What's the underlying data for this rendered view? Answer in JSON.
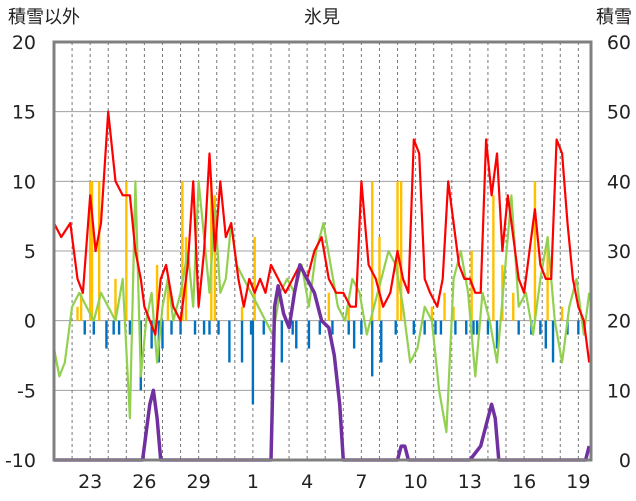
{
  "chart_data": {
    "type": "line",
    "title": "氷見",
    "ylabel_left": "積雪以外",
    "ylabel_right": "積雪",
    "xlabel": "",
    "ylim_left": [
      -10,
      20
    ],
    "ylim_right": [
      0,
      60
    ],
    "yticks_left": [
      "20",
      "15",
      "10",
      "5",
      "0",
      "-5",
      "-10"
    ],
    "yticks_right": [
      "60",
      "50",
      "40",
      "30",
      "20",
      "10",
      "0"
    ],
    "x_ticks": [
      "23",
      "26",
      "29",
      "1",
      "4",
      "7",
      "10",
      "13",
      "16",
      "19"
    ],
    "grid": true,
    "colors": {
      "red_line": "#ff0000",
      "green_line": "#92d050",
      "purple_line": "#7030a0",
      "orange_bars": "#ffc000",
      "blue_bars": "#0070c0",
      "frame": "#808080"
    },
    "series": [
      {
        "color": "red",
        "axis": "left",
        "x": [
          21.0,
          21.4,
          21.9,
          22.3,
          22.6,
          23.0,
          23.3,
          23.6,
          24.0,
          24.4,
          24.8,
          25.2,
          25.5,
          25.8,
          26.0,
          26.3,
          26.6,
          26.9,
          27.2,
          27.6,
          28.0,
          28.4,
          28.7,
          29.0,
          29.3,
          29.6,
          29.9,
          30.2,
          30.5,
          30.8,
          31.2,
          31.5,
          31.8,
          32.1,
          32.4,
          32.7,
          33.0,
          33.4,
          33.8,
          34.2,
          34.6,
          35.0,
          35.4,
          35.8,
          36.2,
          36.6,
          37.0,
          37.4,
          37.7,
          38.0,
          38.4,
          38.8,
          39.2,
          39.6,
          40.0,
          40.3,
          40.6,
          40.9,
          41.2,
          41.5,
          41.8,
          42.2,
          42.5,
          42.8,
          43.1,
          43.4,
          43.7,
          44.0,
          44.3,
          44.6,
          44.9,
          45.2,
          45.5,
          45.8,
          46.1,
          46.4,
          46.7,
          47.0,
          47.3,
          47.6,
          47.9,
          48.2,
          48.5,
          48.8,
          49.1,
          49.4,
          49.7,
          50.0,
          50.3,
          50.6
        ],
        "y": [
          7,
          6,
          7,
          3,
          2,
          9,
          5,
          7,
          15,
          10,
          9,
          9,
          5,
          3,
          1,
          0,
          -1,
          3,
          4,
          1,
          0,
          4,
          10,
          1,
          5,
          12,
          5,
          10,
          6,
          7,
          3,
          1,
          3,
          2,
          3,
          2,
          4,
          3,
          2,
          3,
          4,
          3,
          5,
          6,
          3,
          2,
          2,
          1,
          1,
          10,
          4,
          3,
          1,
          2,
          5,
          3,
          2,
          13,
          12,
          3,
          2,
          1,
          3,
          10,
          7,
          4,
          3,
          3,
          2,
          2,
          13,
          9,
          12,
          5,
          9,
          6,
          3,
          2,
          5,
          8,
          4,
          3,
          3,
          13,
          12,
          7,
          3,
          1,
          0,
          -3
        ]
      },
      {
        "color": "green",
        "axis": "left",
        "x": [
          21.0,
          21.3,
          21.6,
          22.0,
          22.4,
          22.8,
          23.2,
          23.6,
          24.0,
          24.4,
          24.8,
          25.2,
          25.5,
          25.8,
          26.1,
          26.4,
          26.7,
          27.0,
          27.3,
          27.6,
          28.0,
          28.4,
          28.7,
          29.0,
          29.3,
          29.6,
          29.9,
          30.2,
          30.5,
          30.8,
          31.1,
          31.5,
          31.9,
          32.3,
          32.7,
          33.1,
          33.5,
          33.9,
          34.3,
          34.7,
          35.1,
          35.5,
          35.9,
          36.3,
          36.7,
          37.1,
          37.5,
          37.9,
          38.3,
          38.7,
          39.1,
          39.5,
          39.9,
          40.3,
          40.7,
          41.1,
          41.5,
          41.9,
          42.3,
          42.7,
          43.1,
          43.5,
          43.9,
          44.3,
          44.7,
          45.1,
          45.5,
          45.9,
          46.3,
          46.7,
          47.1,
          47.5,
          47.9,
          48.3,
          48.7,
          49.1,
          49.5,
          49.9,
          50.3,
          50.6
        ],
        "y": [
          -2,
          -4,
          -3,
          1,
          2,
          1,
          0,
          2,
          1,
          0,
          3,
          -7,
          10,
          -4,
          0,
          2,
          -3,
          1,
          3,
          0,
          2,
          5,
          1,
          10,
          6,
          2,
          8,
          2,
          3,
          7,
          4,
          3,
          2,
          1,
          0,
          -1,
          2,
          3,
          2,
          4,
          1,
          5,
          7,
          4,
          1,
          0,
          3,
          2,
          -1,
          1,
          3,
          5,
          4,
          1,
          -3,
          -2,
          1,
          0,
          -5,
          -8,
          3,
          5,
          2,
          -4,
          2,
          0,
          -3,
          3,
          9,
          1,
          2,
          -1,
          3,
          6,
          0,
          -3,
          1,
          3,
          -1,
          2
        ]
      },
      {
        "color": "purple",
        "axis": "right",
        "x": [
          21.0,
          25.9,
          26.1,
          26.3,
          26.5,
          26.7,
          26.9,
          27.0,
          27.1,
          33.0,
          33.2,
          33.4,
          33.7,
          34.0,
          34.3,
          34.6,
          35.0,
          35.4,
          35.8,
          36.2,
          36.5,
          36.8,
          37.0,
          40.0,
          40.2,
          40.4,
          40.6,
          40.8,
          41.0,
          44.0,
          44.3,
          44.6,
          44.9,
          45.2,
          45.4,
          45.6,
          50.4,
          50.6
        ],
        "y": [
          0,
          0,
          4,
          8,
          10,
          6,
          0,
          0,
          0,
          0,
          22,
          25,
          21,
          19,
          24,
          28,
          26,
          24,
          20,
          19,
          15,
          8,
          0,
          0,
          2,
          2,
          0,
          0,
          0,
          0,
          1,
          2,
          5,
          8,
          6,
          0,
          0,
          2
        ]
      },
      {
        "color": "orange",
        "type": "bar",
        "axis": "left",
        "x": [
          22.3,
          22.5,
          23.0,
          23.1,
          23.5,
          24.4,
          25.0,
          26.7,
          27.3,
          28.1,
          28.3,
          29.7,
          29.9,
          31.4,
          32.1,
          36.2,
          37.3,
          38.6,
          39.0,
          40.0,
          40.2,
          41.9,
          42.6,
          43.1,
          44.1,
          45.3,
          45.8,
          46.4,
          47.6,
          48.3,
          49.1
        ],
        "y": [
          1,
          2,
          10,
          10,
          10,
          3,
          10,
          4,
          3,
          10,
          6,
          10,
          9,
          1,
          6,
          2,
          1,
          10,
          6,
          10,
          10,
          1,
          2,
          1,
          5,
          9,
          4,
          2,
          10,
          6,
          1
        ]
      },
      {
        "color": "blue",
        "type": "bar",
        "axis": "left",
        "x": [
          22.7,
          23.2,
          23.9,
          24.3,
          24.6,
          25.2,
          25.8,
          26.4,
          26.8,
          27.0,
          27.5,
          28.0,
          28.8,
          29.3,
          29.6,
          30.1,
          30.7,
          31.4,
          31.9,
          32.0,
          32.6,
          33.6,
          34.2,
          34.4,
          35.1,
          35.7,
          36.4,
          37.3,
          37.6,
          38.0,
          38.6,
          39.1,
          39.9,
          40.9,
          41.5,
          42.1,
          42.4,
          43.2,
          43.8,
          44.2,
          44.4,
          45.0,
          45.5,
          46.7,
          47.4,
          47.9,
          48.2,
          48.6,
          49.4,
          50.0
        ],
        "y": [
          -1,
          -1,
          -2,
          -1,
          -1,
          -1,
          -5,
          -2,
          -3,
          -2,
          -1,
          -1,
          -1,
          -1,
          -1,
          -1,
          -3,
          -3,
          -1,
          -6,
          -1,
          -3,
          -1,
          -2,
          -2,
          -1,
          -1,
          -1,
          -2,
          -1,
          -4,
          -3,
          -1,
          -1,
          -1,
          -1,
          -1,
          -1,
          -1,
          -1,
          -1,
          -1,
          -2,
          -1,
          -1,
          -1,
          -2,
          -3,
          -1,
          -1
        ]
      }
    ]
  }
}
